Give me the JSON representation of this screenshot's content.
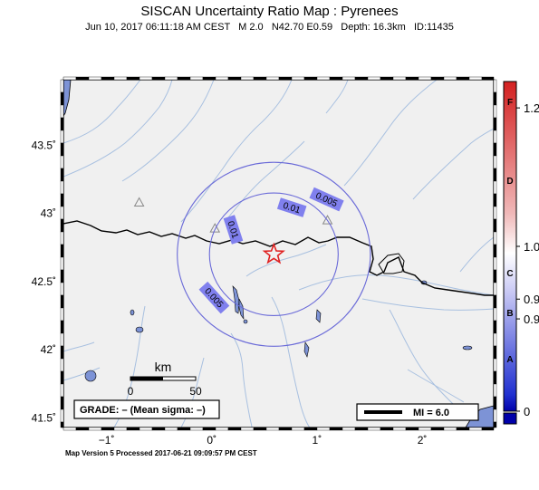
{
  "title": "SISCAN Uncertainty Ratio Map : Pyrenees",
  "subtitle": "Jun 10, 2017 06:11:18 AM CEST   M 2.0   N42.70 E0.59   Depth: 16.3km   ID:11435",
  "footer": "Map Version 5 Processed 2017-06-21 09:09:57 PM CEST",
  "colors": {
    "map_bg": "#f0f0f0",
    "river": "#a8c0e0",
    "contour": "#6a6ad8",
    "label_bg": "#8080ee",
    "epicenter": "#e02020",
    "colorbar_top": "#d82020",
    "colorbar_bottom": "#1010c0"
  },
  "axes": {
    "lat_ticks": [
      {
        "value": 43.5,
        "label": "43.5˚"
      },
      {
        "value": 43.0,
        "label": "43˚"
      },
      {
        "value": 42.5,
        "label": "42.5˚"
      },
      {
        "value": 42.0,
        "label": "42˚"
      },
      {
        "value": 41.5,
        "label": "41.5˚"
      }
    ],
    "lon_ticks": [
      {
        "value": -1,
        "label": "−1˚"
      },
      {
        "value": 0,
        "label": "0˚"
      },
      {
        "value": 1,
        "label": "1˚"
      },
      {
        "value": 2,
        "label": "2˚"
      }
    ],
    "lon_range": [
      -1.41,
      2.68
    ],
    "lat_range": [
      41.43,
      43.98
    ]
  },
  "epicenter": {
    "lat": 42.7,
    "lon": 0.59
  },
  "contours": [
    {
      "label": "0.01",
      "radius_km": 50
    },
    {
      "label": "0.005",
      "radius_km": 75
    }
  ],
  "contour_labels": [
    {
      "text": "0.01",
      "lon": 0.2,
      "lat": 42.88,
      "rot": 72
    },
    {
      "text": "0.01",
      "lon": 0.76,
      "lat": 43.04,
      "rot": 18
    },
    {
      "text": "0.005",
      "lon": 1.09,
      "lat": 43.1,
      "rot": 24
    },
    {
      "text": "0.005",
      "lon": 0.02,
      "lat": 42.38,
      "rot": 48
    }
  ],
  "stations": [
    {
      "lon": -0.69,
      "lat": 43.08
    },
    {
      "lon": 0.03,
      "lat": 42.89
    },
    {
      "lon": 1.1,
      "lat": 42.95
    }
  ],
  "scale_bar": {
    "title": "km",
    "label_start": "0",
    "label_end": "50"
  },
  "grade_box": {
    "text": "GRADE: – (Mean sigma: –)"
  },
  "legend": {
    "text": "MI = 6.0"
  },
  "colorbar": {
    "scale": [
      {
        "value": "1.2",
        "pos": 0.08
      },
      {
        "value": "1.0",
        "pos": 0.5
      },
      {
        "value": "0.9",
        "pos": 0.66
      },
      {
        "value": "0.9",
        "pos": 0.72
      },
      {
        "value": "0",
        "pos": 1.0
      }
    ],
    "grades": [
      {
        "letter": "F",
        "pos": 0.06
      },
      {
        "letter": "D",
        "pos": 0.3
      },
      {
        "letter": "C",
        "pos": 0.58
      },
      {
        "letter": "B",
        "pos": 0.7
      },
      {
        "letter": "A",
        "pos": 0.84
      }
    ]
  }
}
